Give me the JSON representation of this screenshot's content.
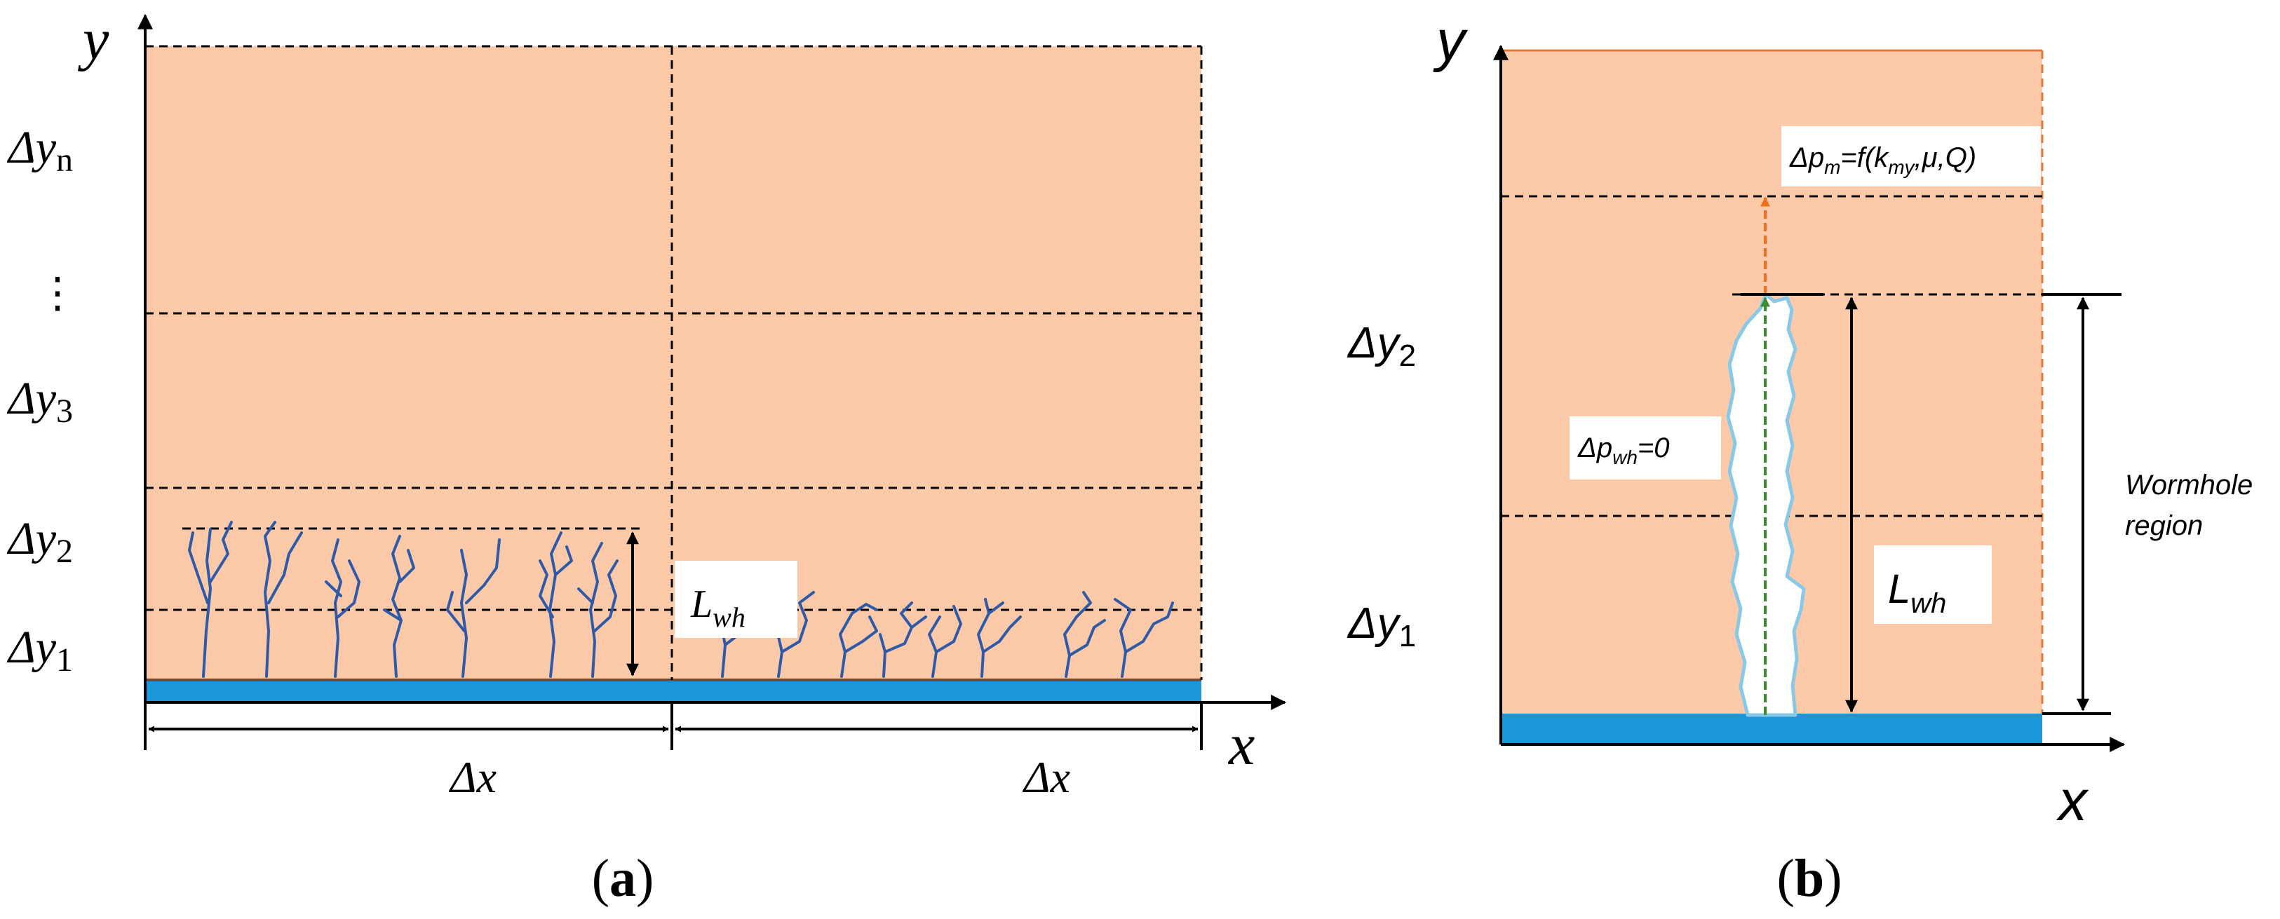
{
  "colors": {
    "rock": "#fccaa9",
    "rock_edge": "#e07b3c",
    "fracture_face": "#1b96d8",
    "wormhole_branch": "#2f5aa8",
    "wormhole_fill": "#ffffff",
    "wormhole_outline": "#8ac8e8",
    "flow_arrow_rock": "#f06f1a",
    "flow_arrow_wormhole": "#3c8a2f",
    "line": "#000000"
  },
  "panel_a": {
    "axis_y": "y",
    "axis_x": "x",
    "layers": {
      "dy_n": {
        "main": "Δy",
        "sub": "n"
      },
      "ellipsis": "⋮",
      "dy_3": {
        "main": "Δy",
        "sub": "3"
      },
      "dy_2": {
        "main": "Δy",
        "sub": "2"
      },
      "dy_1": {
        "main": "Δy",
        "sub": "1"
      }
    },
    "length_label": {
      "main": "L",
      "sub": "wh"
    },
    "dx_left": "Δx",
    "dx_right": "Δx",
    "caption": {
      "open": "(",
      "letter": "a",
      "close": ")"
    }
  },
  "panel_b": {
    "axis_y": "y",
    "axis_x": "x",
    "dy_2": {
      "main": "Δy",
      "sub": "2"
    },
    "dy_1": {
      "main": "Δy",
      "sub": "1"
    },
    "pressure_matrix": {
      "a": "Δp",
      "b": "m",
      "c": "=f(k",
      "d": "my",
      "e": ",μ,Q)"
    },
    "pressure_wormhole": {
      "a": "Δp",
      "b": "wh",
      "c": "=0"
    },
    "length_label": {
      "main": "L",
      "sub": "wh"
    },
    "region_label": [
      "Wormhole",
      "region"
    ],
    "caption": {
      "open": "(",
      "letter": "b",
      "close": ")"
    }
  }
}
